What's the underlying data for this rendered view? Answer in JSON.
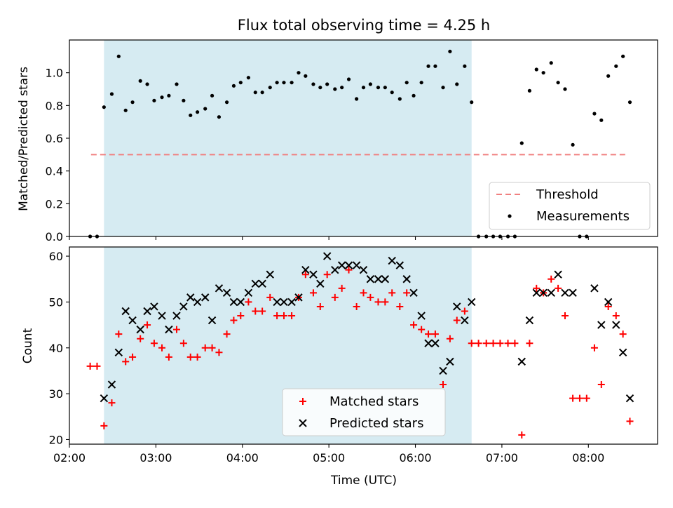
{
  "chart_data": [
    {
      "type": "scatter",
      "title": "Flux total observing time = 4.25 h",
      "ylabel": "Matched/Predicted stars",
      "ylim": [
        0,
        1.2
      ],
      "yticks": [
        0.0,
        0.2,
        0.4,
        0.6,
        0.8,
        1.0
      ],
      "ytick_labels": [
        "0.0",
        "0.2",
        "0.4",
        "0.6",
        "0.8",
        "1.0"
      ],
      "xlim": [
        2.0,
        8.8
      ],
      "shaded_span": [
        2.4,
        6.65
      ],
      "shade_color": "#add8e6",
      "threshold": {
        "name": "Threshold",
        "value": 0.5,
        "x": [
          2.25,
          8.45
        ],
        "color": "#f08080"
      },
      "series": [
        {
          "name": "Measurements",
          "color": "#000000",
          "x": [
            2.24,
            2.32,
            2.4,
            2.49,
            2.57,
            2.65,
            2.73,
            2.82,
            2.9,
            2.98,
            3.07,
            3.15,
            3.24,
            3.32,
            3.4,
            3.48,
            3.57,
            3.65,
            3.73,
            3.82,
            3.9,
            3.98,
            4.07,
            4.15,
            4.23,
            4.32,
            4.4,
            4.48,
            4.57,
            4.65,
            4.73,
            4.82,
            4.9,
            4.98,
            5.07,
            5.15,
            5.23,
            5.32,
            5.4,
            5.48,
            5.57,
            5.65,
            5.73,
            5.82,
            5.9,
            5.98,
            6.07,
            6.15,
            6.23,
            6.32,
            6.4,
            6.48,
            6.57,
            6.65,
            6.73,
            6.82,
            6.9,
            6.98,
            7.07,
            7.15,
            7.23,
            7.32,
            7.4,
            7.48,
            7.57,
            7.65,
            7.73,
            7.82,
            7.9,
            7.98,
            8.07,
            8.15,
            8.23,
            8.32,
            8.4,
            8.48
          ],
          "y": [
            0.0,
            0.0,
            0.79,
            0.87,
            1.1,
            0.77,
            0.82,
            0.95,
            0.93,
            0.83,
            0.85,
            0.86,
            0.93,
            0.83,
            0.74,
            0.76,
            0.78,
            0.86,
            0.73,
            0.82,
            0.92,
            0.94,
            0.97,
            0.88,
            0.88,
            0.91,
            0.94,
            0.94,
            0.94,
            1.0,
            0.98,
            0.93,
            0.91,
            0.93,
            0.9,
            0.91,
            0.96,
            0.84,
            0.91,
            0.93,
            0.91,
            0.91,
            0.88,
            0.84,
            0.94,
            0.86,
            0.94,
            1.04,
            1.04,
            0.91,
            1.13,
            0.93,
            1.04,
            0.82,
            0.0,
            0.0,
            0.0,
            0.0,
            0.0,
            0.0,
            0.57,
            0.89,
            1.02,
            1.0,
            1.06,
            0.94,
            0.9,
            0.56,
            0.0,
            0.0,
            0.75,
            0.71,
            0.98,
            1.04,
            1.1,
            0.82
          ]
        }
      ],
      "legend": {
        "placement": "lower right",
        "entries": [
          "Threshold",
          "Measurements"
        ]
      }
    },
    {
      "type": "scatter",
      "xlabel": "Time (UTC)",
      "ylabel": "Count",
      "ylim": [
        19,
        62
      ],
      "yticks": [
        20,
        30,
        40,
        50,
        60
      ],
      "ytick_labels": [
        "20",
        "30",
        "40",
        "50",
        "60"
      ],
      "xlim": [
        2.0,
        8.8
      ],
      "xticks": [
        2,
        3,
        4,
        5,
        6,
        7,
        8
      ],
      "xtick_labels": [
        "02:00",
        "03:00",
        "04:00",
        "05:00",
        "06:00",
        "07:00",
        "08:00"
      ],
      "shaded_span": [
        2.4,
        6.65
      ],
      "shade_color": "#add8e6",
      "series": [
        {
          "name": "Matched stars",
          "color": "#ff0000",
          "marker": "plus",
          "x": [
            2.24,
            2.32,
            2.4,
            2.49,
            2.57,
            2.65,
            2.73,
            2.82,
            2.9,
            2.98,
            3.07,
            3.15,
            3.24,
            3.32,
            3.4,
            3.48,
            3.57,
            3.65,
            3.73,
            3.82,
            3.9,
            3.98,
            4.07,
            4.15,
            4.23,
            4.32,
            4.4,
            4.48,
            4.57,
            4.65,
            4.73,
            4.82,
            4.9,
            4.98,
            5.07,
            5.15,
            5.23,
            5.32,
            5.4,
            5.48,
            5.57,
            5.65,
            5.73,
            5.82,
            5.9,
            5.98,
            6.07,
            6.15,
            6.23,
            6.32,
            6.4,
            6.48,
            6.57,
            6.65,
            6.73,
            6.82,
            6.9,
            6.98,
            7.07,
            7.15,
            7.23,
            7.32,
            7.4,
            7.48,
            7.57,
            7.65,
            7.73,
            7.82,
            7.9,
            7.98,
            8.07,
            8.15,
            8.23,
            8.32,
            8.4,
            8.48
          ],
          "y": [
            36,
            36,
            23,
            28,
            43,
            37,
            38,
            42,
            45,
            41,
            40,
            38,
            44,
            41,
            38,
            38,
            40,
            40,
            39,
            43,
            46,
            47,
            50,
            48,
            48,
            51,
            47,
            47,
            47,
            51,
            56,
            52,
            49,
            56,
            51,
            53,
            57,
            49,
            52,
            51,
            50,
            50,
            52,
            49,
            52,
            45,
            44,
            43,
            43,
            32,
            42,
            46,
            48,
            41,
            41,
            41,
            41,
            41,
            41,
            41,
            21,
            41,
            53,
            52,
            55,
            53,
            47,
            29,
            29,
            29,
            40,
            32,
            49,
            47,
            43,
            24
          ]
        },
        {
          "name": "Predicted stars",
          "color": "#000000",
          "marker": "x",
          "x": [
            2.4,
            2.49,
            2.57,
            2.65,
            2.73,
            2.82,
            2.9,
            2.98,
            3.07,
            3.15,
            3.24,
            3.32,
            3.4,
            3.48,
            3.57,
            3.65,
            3.73,
            3.82,
            3.9,
            3.98,
            4.07,
            4.15,
            4.23,
            4.32,
            4.4,
            4.48,
            4.57,
            4.65,
            4.73,
            4.82,
            4.9,
            4.98,
            5.07,
            5.15,
            5.23,
            5.32,
            5.4,
            5.48,
            5.57,
            5.65,
            5.73,
            5.82,
            5.9,
            5.98,
            6.07,
            6.15,
            6.23,
            6.32,
            6.4,
            6.48,
            6.57,
            6.65,
            7.23,
            7.32,
            7.4,
            7.48,
            7.57,
            7.65,
            7.73,
            7.82,
            8.07,
            8.15,
            8.23,
            8.32,
            8.4,
            8.48
          ],
          "y": [
            29,
            32,
            39,
            48,
            46,
            44,
            48,
            49,
            47,
            44,
            47,
            49,
            51,
            50,
            51,
            46,
            53,
            52,
            50,
            50,
            52,
            54,
            54,
            56,
            50,
            50,
            50,
            51,
            57,
            56,
            54,
            60,
            57,
            58,
            58,
            58,
            57,
            55,
            55,
            55,
            59,
            58,
            55,
            52,
            47,
            41,
            41,
            35,
            37,
            49,
            46,
            50,
            37,
            46,
            52,
            52,
            52,
            56,
            52,
            52,
            53,
            45,
            50,
            45,
            39,
            29
          ]
        }
      ],
      "legend": {
        "placement": "lower center",
        "entries": [
          "Matched stars",
          "Predicted stars"
        ]
      }
    }
  ]
}
